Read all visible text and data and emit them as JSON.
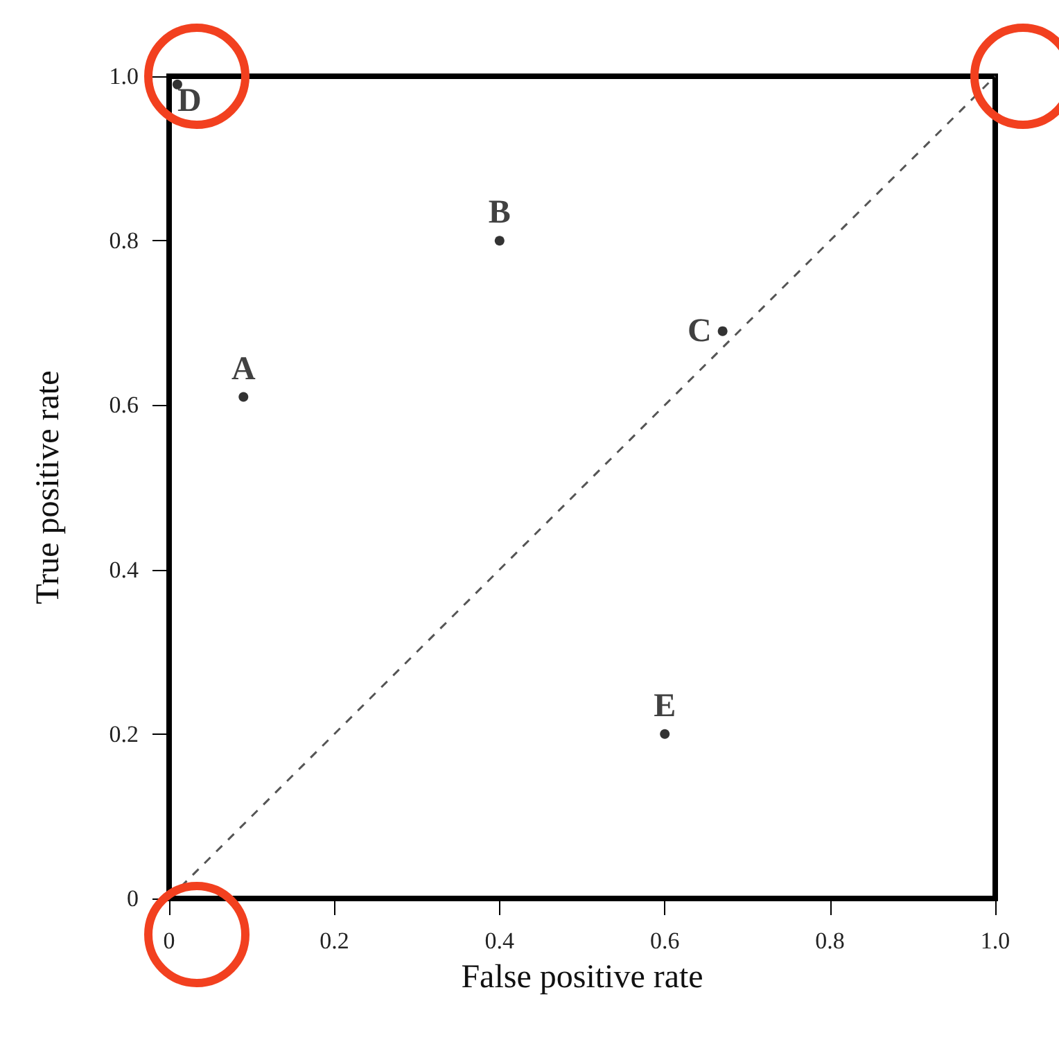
{
  "chart_data": {
    "type": "scatter",
    "xlabel": "False positive rate",
    "ylabel": "True positive rate",
    "series": [
      {
        "type": "scatter",
        "color": "#000000",
        "marker": "circle",
        "x": [
          0.09,
          0.4,
          0.67,
          0.01,
          0.6
        ],
        "values": [
          0.61,
          0.8,
          0.69,
          0.99,
          0.2
        ]
      },
      {
        "type": "line",
        "color": "#555555",
        "marker": "none",
        "line_style": "dashed",
        "x": [
          0,
          1
        ],
        "values": [
          0,
          1
        ]
      }
    ],
    "xlim": [
      0,
      1
    ],
    "ylim": [
      0,
      1
    ],
    "xticks": [
      0,
      0.2,
      0.4,
      0.6,
      0.8,
      {
        "value": 1,
        "label": "1.0"
      }
    ],
    "yticks": [
      0,
      0.2,
      0.4,
      0.6,
      0.8,
      {
        "value": 1,
        "label": "1.0"
      }
    ],
    "annotations": [
      {
        "text": "A",
        "x": 0.09,
        "y": 0.61
      },
      {
        "text": "B",
        "x": 0.4,
        "y": 0.8
      },
      {
        "text": "C",
        "x": 0.67,
        "y": 0.69
      },
      {
        "text": "D",
        "x": 0.01,
        "y": 0.99
      },
      {
        "text": "E",
        "x": 0.6,
        "y": 0.2
      }
    ]
  }
}
